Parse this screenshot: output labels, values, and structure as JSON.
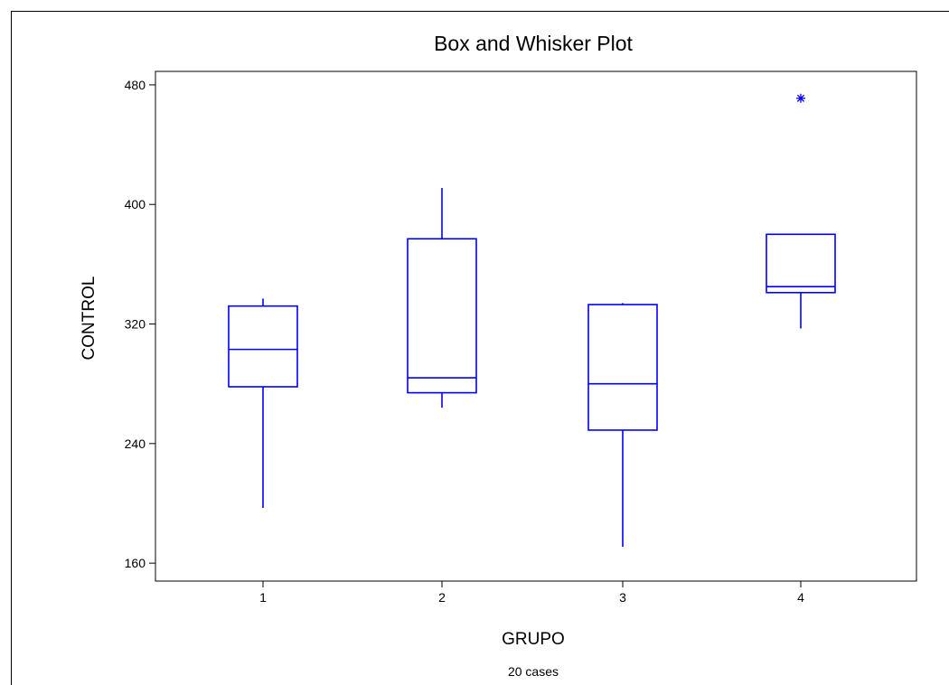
{
  "chart_data": {
    "type": "box",
    "title": "Box and Whisker Plot",
    "xlabel": "GRUPO",
    "ylabel": "CONTROL",
    "footnote": "20 cases",
    "categories": [
      "1",
      "2",
      "3",
      "4"
    ],
    "yticks": [
      "480",
      "400",
      "320",
      "240",
      "160"
    ],
    "ylim": [
      148,
      489
    ],
    "grid": false,
    "color": "#0000ff",
    "boxes": [
      {
        "category": "1",
        "whisker_low": 197,
        "q1": 278,
        "median": 303,
        "q3": 332,
        "whisker_high": 337,
        "outliers": []
      },
      {
        "category": "2",
        "whisker_low": 264,
        "q1": 274,
        "median": 284,
        "q3": 377,
        "whisker_high": 411,
        "outliers": []
      },
      {
        "category": "3",
        "whisker_low": 171,
        "q1": 249,
        "median": 280,
        "q3": 333,
        "whisker_high": 334,
        "outliers": []
      },
      {
        "category": "4",
        "whisker_low": 317,
        "q1": 341,
        "median": 345,
        "q3": 380,
        "whisker_high": 380,
        "outliers": [
          471
        ]
      }
    ]
  }
}
